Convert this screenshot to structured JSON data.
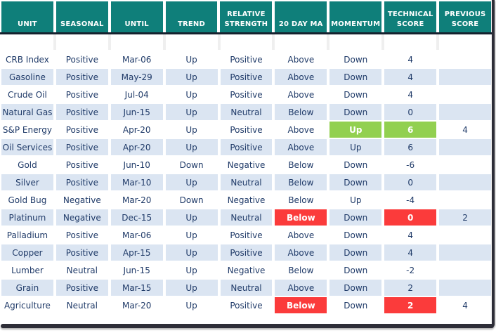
{
  "chart_data": {
    "type": "table",
    "columns": [
      {
        "key": "unit",
        "label": "UNIT"
      },
      {
        "key": "seasonal",
        "label": "SEASONAL"
      },
      {
        "key": "until",
        "label": "UNTIL"
      },
      {
        "key": "trend",
        "label": "TREND"
      },
      {
        "key": "rs",
        "label": "RELATIVE STRENGTH"
      },
      {
        "key": "ma20",
        "label": "20 DAY MA"
      },
      {
        "key": "momentum",
        "label": "MOMENTUM"
      },
      {
        "key": "score",
        "label": "TECHNICAL SCORE"
      },
      {
        "key": "prev",
        "label": "PREVIOUS SCORE"
      }
    ],
    "rows": [
      {
        "unit": "CRB Index",
        "seasonal": "Positive",
        "until": "Mar-06",
        "trend": "Up",
        "rs": "Positive",
        "ma20": "Above",
        "momentum": "Down",
        "score": "4",
        "prev": ""
      },
      {
        "unit": "Gasoline",
        "seasonal": "Positive",
        "until": "May-29",
        "trend": "Up",
        "rs": "Positive",
        "ma20": "Above",
        "momentum": "Down",
        "score": "4",
        "prev": ""
      },
      {
        "unit": "Crude Oil",
        "seasonal": "Positive",
        "until": "Jul-04",
        "trend": "Up",
        "rs": "Positive",
        "ma20": "Above",
        "momentum": "Down",
        "score": "4",
        "prev": ""
      },
      {
        "unit": "Natural Gas",
        "seasonal": "Positive",
        "until": "Jun-15",
        "trend": "Up",
        "rs": "Neutral",
        "ma20": "Below",
        "momentum": "Down",
        "score": "0",
        "prev": ""
      },
      {
        "unit": "S&P Energy",
        "seasonal": "Positive",
        "until": "Apr-20",
        "trend": "Up",
        "rs": "Positive",
        "ma20": "Above",
        "momentum": "Up",
        "score": "6",
        "prev": "4",
        "hl": {
          "momentum": "green",
          "score": "green"
        }
      },
      {
        "unit": "Oil Services",
        "seasonal": "Positive",
        "until": "Apr-20",
        "trend": "Up",
        "rs": "Positive",
        "ma20": "Above",
        "momentum": "Up",
        "score": "6",
        "prev": ""
      },
      {
        "unit": "Gold",
        "seasonal": "Positive",
        "until": "Jun-10",
        "trend": "Down",
        "rs": "Negative",
        "ma20": "Below",
        "momentum": "Down",
        "score": "-6",
        "prev": ""
      },
      {
        "unit": "Silver",
        "seasonal": "Positive",
        "until": "Mar-10",
        "trend": "Up",
        "rs": "Neutral",
        "ma20": "Below",
        "momentum": "Down",
        "score": "0",
        "prev": ""
      },
      {
        "unit": "Gold Bug",
        "seasonal": "Negative",
        "until": "Mar-20",
        "trend": "Down",
        "rs": "Negative",
        "ma20": "Below",
        "momentum": "Up",
        "score": "-4",
        "prev": ""
      },
      {
        "unit": "Platinum",
        "seasonal": "Negative",
        "until": "Dec-15",
        "trend": "Up",
        "rs": "Neutral",
        "ma20": "Below",
        "momentum": "Down",
        "score": "0",
        "prev": "2",
        "hl": {
          "ma20": "red",
          "score": "red"
        }
      },
      {
        "unit": "Palladium",
        "seasonal": "Positive",
        "until": "Mar-06",
        "trend": "Up",
        "rs": "Positive",
        "ma20": "Above",
        "momentum": "Down",
        "score": "4",
        "prev": ""
      },
      {
        "unit": "Copper",
        "seasonal": "Positive",
        "until": "Apr-15",
        "trend": "Up",
        "rs": "Positive",
        "ma20": "Above",
        "momentum": "Down",
        "score": "4",
        "prev": ""
      },
      {
        "unit": "Lumber",
        "seasonal": "Neutral",
        "until": "Jun-15",
        "trend": "Up",
        "rs": "Negative",
        "ma20": "Below",
        "momentum": "Down",
        "score": "-2",
        "prev": ""
      },
      {
        "unit": "Grain",
        "seasonal": "Positive",
        "until": "Mar-15",
        "trend": "Up",
        "rs": "Neutral",
        "ma20": "Above",
        "momentum": "Down",
        "score": "2",
        "prev": ""
      },
      {
        "unit": "Agriculture",
        "seasonal": "Neutral",
        "until": "Mar-20",
        "trend": "Up",
        "rs": "Positive",
        "ma20": "Below",
        "momentum": "Down",
        "score": "2",
        "prev": "4",
        "hl": {
          "ma20": "red",
          "score": "red"
        }
      }
    ]
  },
  "colors": {
    "header_bg": "#0f7f7a",
    "row_alt": "#dbe5f2",
    "text_navy": "#1f3a68",
    "highlight_green": "#92d050",
    "highlight_red": "#fb3b3b",
    "divider": "#15212e",
    "frame": "#2e2e38"
  }
}
